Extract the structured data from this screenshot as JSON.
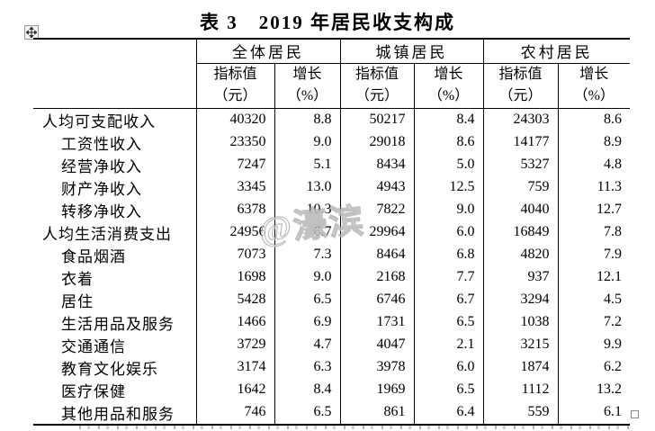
{
  "title": "表 3　2019 年居民收支构成",
  "watermark": "@濠滨",
  "icons": {
    "move_handle": "four-way move arrows",
    "resize_handle": "table resize square"
  },
  "colors": {
    "text": "#000000",
    "background": "#ffffff",
    "watermark_gray": "#8c8c8c",
    "handle_border": "#9a9a9a"
  },
  "table": {
    "groups": [
      {
        "label": "全体居民"
      },
      {
        "label": "城镇居民"
      },
      {
        "label": "农村居民"
      }
    ],
    "sub_headers": {
      "value_line1": "指标值",
      "value_line2": "（元）",
      "growth_line1": "增长",
      "growth_line2": "（%）"
    },
    "rows": [
      {
        "label": "人均可支配收入",
        "indent": false,
        "values": [
          "40320",
          "8.8",
          "50217",
          "8.4",
          "24303",
          "8.6"
        ]
      },
      {
        "label": "工资性收入",
        "indent": true,
        "values": [
          "23350",
          "9.0",
          "29018",
          "8.6",
          "14177",
          "8.9"
        ]
      },
      {
        "label": "经营净收入",
        "indent": true,
        "values": [
          "7247",
          "5.1",
          "8434",
          "5.0",
          "5327",
          "4.8"
        ]
      },
      {
        "label": "财产净收入",
        "indent": true,
        "values": [
          "3345",
          "13.0",
          "4943",
          "12.5",
          "759",
          "11.3"
        ]
      },
      {
        "label": "转移净收入",
        "indent": true,
        "values": [
          "6378",
          "10.3",
          "7822",
          "9.0",
          "4040",
          "12.7"
        ]
      },
      {
        "label": "人均生活消费支出",
        "indent": false,
        "values": [
          "24956",
          "6.7",
          "29964",
          "6.0",
          "16849",
          "7.8"
        ]
      },
      {
        "label": "食品烟酒",
        "indent": true,
        "values": [
          "7073",
          "7.3",
          "8464",
          "6.8",
          "4820",
          "7.9"
        ]
      },
      {
        "label": "衣着",
        "indent": true,
        "values": [
          "1698",
          "9.0",
          "2168",
          "7.7",
          "937",
          "12.1"
        ]
      },
      {
        "label": "居住",
        "indent": true,
        "values": [
          "5428",
          "6.5",
          "6746",
          "6.7",
          "3294",
          "4.5"
        ]
      },
      {
        "label": "生活用品及服务",
        "indent": true,
        "values": [
          "1466",
          "6.9",
          "1731",
          "6.5",
          "1038",
          "7.2"
        ]
      },
      {
        "label": "交通通信",
        "indent": true,
        "values": [
          "3729",
          "4.7",
          "4047",
          "2.1",
          "3215",
          "9.9"
        ]
      },
      {
        "label": "教育文化娱乐",
        "indent": true,
        "values": [
          "3174",
          "6.3",
          "3978",
          "6.0",
          "1874",
          "6.2"
        ]
      },
      {
        "label": "医疗保健",
        "indent": true,
        "values": [
          "1642",
          "8.4",
          "1969",
          "6.5",
          "1112",
          "13.2"
        ]
      },
      {
        "label": "其他用品和服务",
        "indent": true,
        "values": [
          "746",
          "6.5",
          "861",
          "6.4",
          "559",
          "6.1"
        ]
      }
    ]
  }
}
